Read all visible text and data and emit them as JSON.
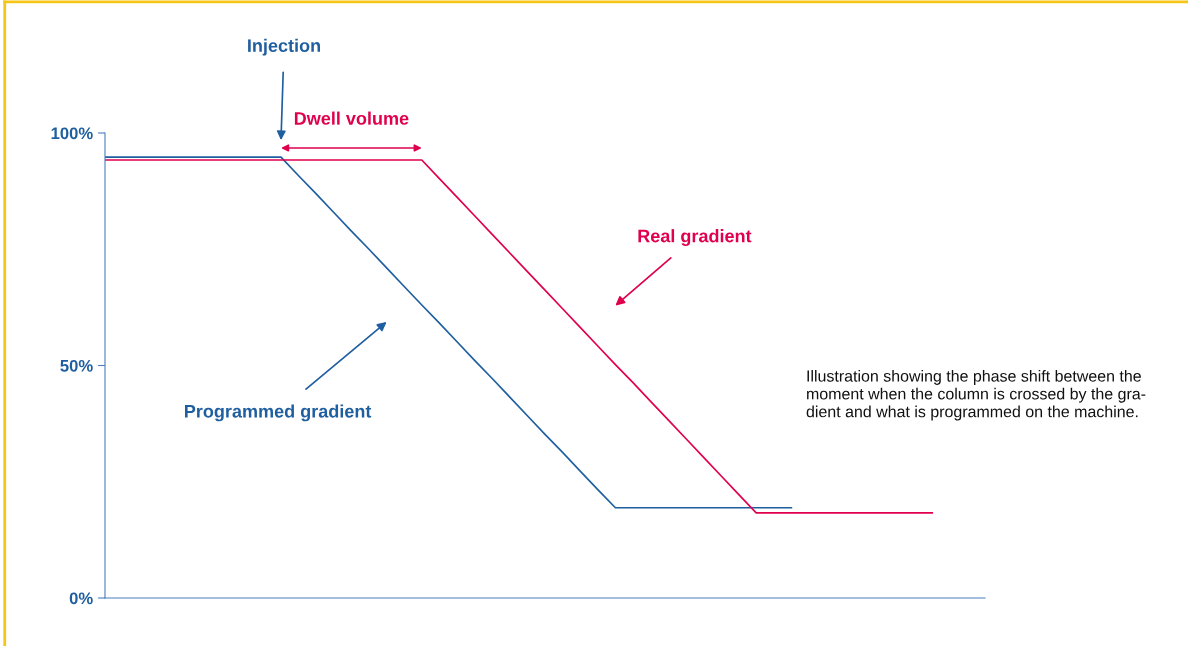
{
  "chart_data": {
    "type": "line",
    "categories": [
      null,
      null,
      null,
      null,
      null,
      null,
      null,
      null,
      null,
      null,
      null,
      null,
      null,
      null,
      null,
      null,
      null,
      null,
      null,
      null,
      null,
      null,
      null,
      null,
      null,
      null,
      null,
      null,
      null,
      null,
      null,
      null,
      null,
      null,
      null,
      null,
      null,
      null,
      null,
      null,
      null,
      null,
      null,
      null,
      null,
      null,
      null,
      null,
      null,
      null,
      null
    ],
    "series": [
      {
        "name": "Programmed gradient",
        "color": "#1f5fa0",
        "values": [
          94.8,
          94.8,
          94.8,
          94.8,
          94.8,
          94.8,
          94.8,
          94.8,
          94.8,
          94.8,
          94.8,
          90.8,
          86.9,
          82.9,
          78.9,
          75.0,
          71.0,
          67.0,
          63.0,
          59.1,
          55.1,
          51.1,
          47.2,
          43.2,
          39.2,
          35.2,
          31.3,
          27.3,
          23.3,
          19.4,
          19.4,
          19.4,
          19.4,
          19.4,
          19.4,
          19.4,
          19.4,
          19.4,
          19.4,
          19.4,
          null,
          null,
          null,
          null,
          null,
          null,
          null,
          null,
          null,
          null,
          null
        ]
      },
      {
        "name": "Real gradient",
        "color": "#e0004d",
        "values": [
          94.2,
          94.2,
          94.2,
          94.2,
          94.2,
          94.2,
          94.2,
          94.2,
          94.2,
          94.2,
          94.2,
          94.2,
          94.2,
          94.2,
          94.2,
          94.2,
          94.2,
          94.2,
          94.2,
          90.2,
          86.2,
          82.2,
          78.2,
          74.2,
          70.2,
          66.2,
          62.2,
          58.2,
          54.2,
          50.2,
          46.3,
          42.3,
          38.3,
          34.3,
          30.3,
          26.3,
          22.3,
          18.3,
          18.3,
          18.3,
          18.3,
          18.3,
          18.3,
          18.3,
          18.3,
          18.3,
          18.3,
          18.3,
          null,
          null,
          null
        ]
      }
    ],
    "ylim": [
      0,
      100
    ],
    "yticks": [
      {
        "value": 0,
        "label": "0%"
      },
      {
        "value": 50,
        "label": "50%"
      },
      {
        "value": 100,
        "label": "100%"
      }
    ],
    "tick_labels": "y",
    "grid": false,
    "legend": false,
    "marker": "none",
    "line_style": "solid",
    "annotations": [
      "Injection",
      "Dwell volume",
      "Illustration showing the phase shift between the\nmoment when the column is crossed by the gra-\ndient and what is programmed on the machine."
    ]
  }
}
